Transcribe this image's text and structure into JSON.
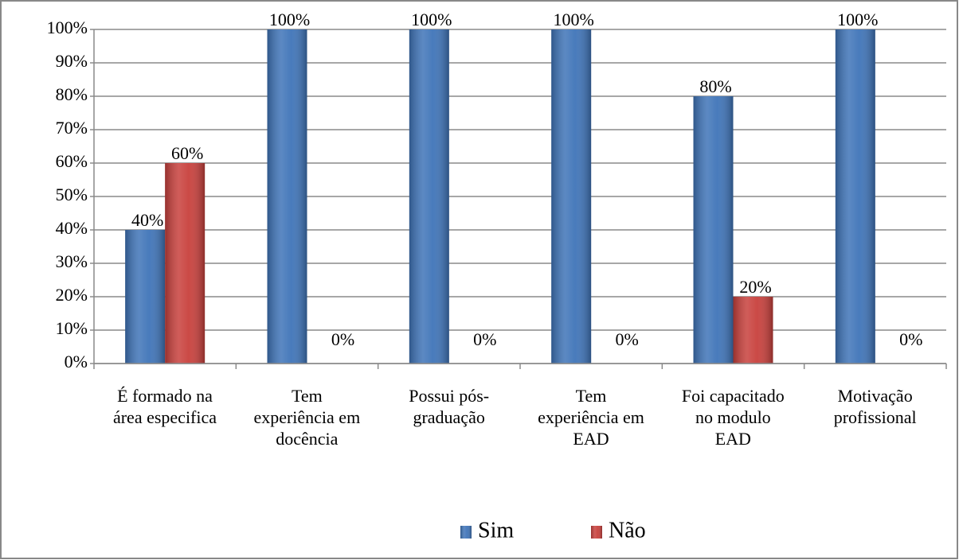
{
  "chart_data": {
    "type": "bar",
    "categories": [
      "É formado na\nárea especifica",
      "Tem\nexperiência em\ndocência",
      "Possui pós-\ngraduação",
      "Tem\nexperiência em\nEAD",
      "Foi capacitado\nno modulo\nEAD",
      "Motivação\nprofissional"
    ],
    "series": [
      {
        "name": "Sim",
        "color": "#3f74b8",
        "values": [
          40,
          100,
          100,
          100,
          80,
          100
        ],
        "value_labels": [
          "40%",
          "100%",
          "100%",
          "100%",
          "80%",
          "100%"
        ]
      },
      {
        "name": "Não",
        "color": "#c8403c",
        "values": [
          60,
          0,
          0,
          0,
          20,
          0
        ],
        "value_labels": [
          "60%",
          "0%",
          "0%",
          "0%",
          "20%",
          "0%"
        ]
      }
    ],
    "ylim": [
      0,
      100
    ],
    "yticks": [
      {
        "value": 0,
        "label": "0%"
      },
      {
        "value": 10,
        "label": "10%"
      },
      {
        "value": 20,
        "label": "20%"
      },
      {
        "value": 30,
        "label": "30%"
      },
      {
        "value": 40,
        "label": "40%"
      },
      {
        "value": 50,
        "label": "50%"
      },
      {
        "value": 60,
        "label": "60%"
      },
      {
        "value": 70,
        "label": "70%"
      },
      {
        "value": 80,
        "label": "80%"
      },
      {
        "value": 90,
        "label": "90%"
      },
      {
        "value": 100,
        "label": "100%"
      }
    ],
    "grid": true,
    "legend": "bottom"
  }
}
